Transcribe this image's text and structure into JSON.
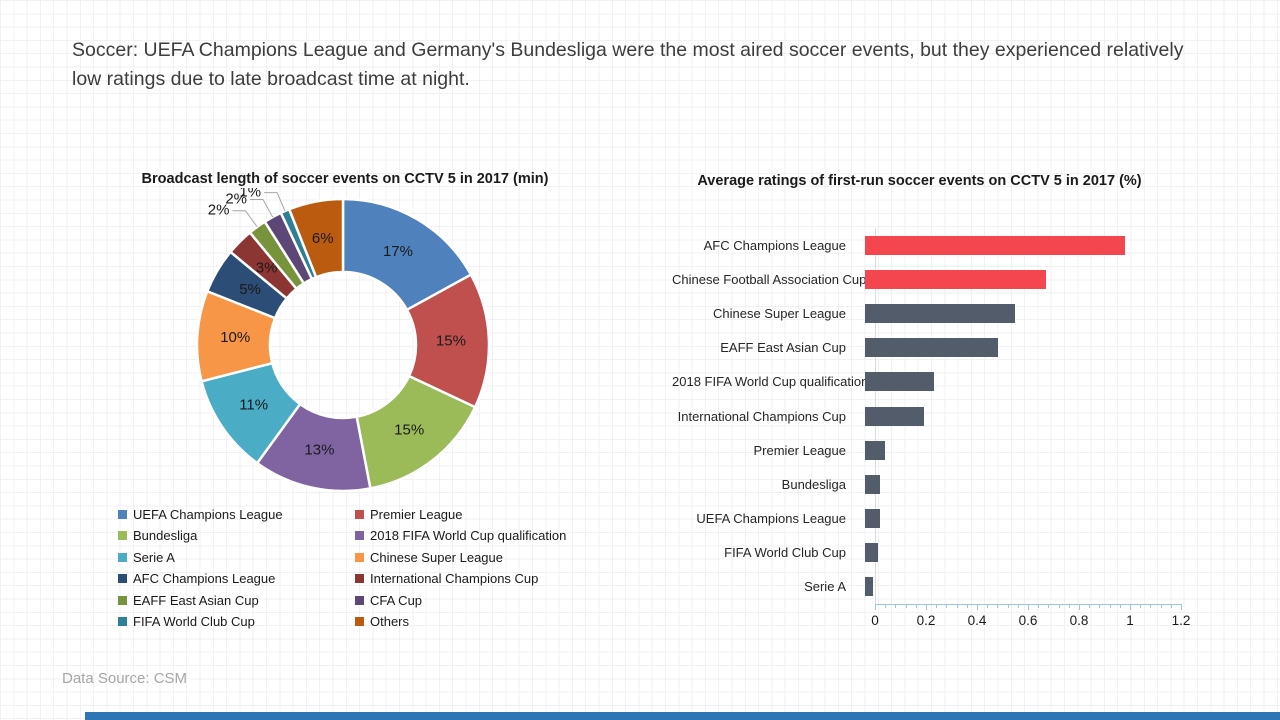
{
  "page": {
    "title": "Soccer: UEFA Champions League and Germany's Bundesliga were the most aired soccer events, but they experienced relatively low ratings due to late broadcast time at night.",
    "data_source": "Data Source: CSM",
    "footer_bar_color": "#2E75B6"
  },
  "chart_data": [
    {
      "type": "pie",
      "subtype": "donut",
      "title": "Broadcast length of soccer events on CCTV 5 in 2017 (min)",
      "label_unit": "%",
      "legend_position": "bottom",
      "slices": [
        {
          "label": "UEFA Champions League",
          "value": 17,
          "color": "#4F81BD"
        },
        {
          "label": "Premier League",
          "value": 15,
          "color": "#C0504D"
        },
        {
          "label": "Bundesliga",
          "value": 15,
          "color": "#9BBB59"
        },
        {
          "label": "2018 FIFA World Cup qualification",
          "value": 13,
          "color": "#8064A2"
        },
        {
          "label": "Serie A",
          "value": 11,
          "color": "#4BACC6"
        },
        {
          "label": "Chinese Super League",
          "value": 10,
          "color": "#F79646"
        },
        {
          "label": "AFC Champions League",
          "value": 5,
          "color": "#2C4D75"
        },
        {
          "label": "International Champions Cup",
          "value": 3,
          "color": "#8B3633"
        },
        {
          "label": "EAFF East Asian Cup",
          "value": 2,
          "color": "#77933C"
        },
        {
          "label": "CFA Cup",
          "value": 2,
          "color": "#5C4776"
        },
        {
          "label": "FIFA World Club Cup",
          "value": 1,
          "color": "#2E8096"
        },
        {
          "label": "Others",
          "value": 6,
          "color": "#BA5B0F"
        }
      ]
    },
    {
      "type": "bar",
      "orientation": "horizontal",
      "title": "Average ratings of first-run soccer events on CCTV 5 in 2017 (%)",
      "categories": [
        "AFC Champions League",
        "Chinese Football Association Cup",
        "Chinese Super League",
        "EAFF East Asian Cup",
        "2018 FIFA World Cup qualification",
        "International Champions Cup",
        "Premier League",
        "Bundesliga",
        "UEFA Champions League",
        "FIFA World Club Cup",
        "Serie A"
      ],
      "values": [
        1.02,
        0.71,
        0.59,
        0.52,
        0.27,
        0.23,
        0.08,
        0.06,
        0.06,
        0.05,
        0.03
      ],
      "colors": [
        "#F4464E",
        "#F4464E",
        "#535C6B",
        "#535C6B",
        "#535C6B",
        "#535C6B",
        "#535C6B",
        "#535C6B",
        "#535C6B",
        "#535C6B",
        "#535C6B"
      ],
      "xlim": [
        0,
        1.2
      ],
      "x_tick_labels": [
        "0",
        "0.2",
        "0.4",
        "0.6",
        "0.8",
        "1",
        "1.2"
      ],
      "minor_tick_step": 0.04,
      "axis_color": "#9DC3E6",
      "grid": false
    }
  ]
}
